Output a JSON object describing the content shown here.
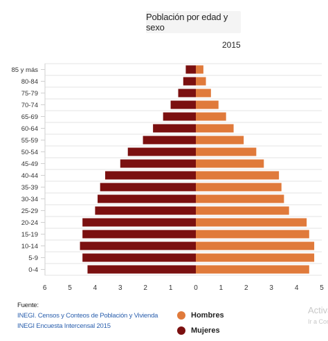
{
  "chart_data": {
    "type": "bar",
    "orientation": "horizontal-population-pyramid",
    "title": "Población por edad y sexo",
    "subtitle": "2015",
    "categories": [
      "85 y más",
      "80-84",
      "75-79",
      "70-74",
      "65-69",
      "60-64",
      "55-59",
      "50-54",
      "45-49",
      "40-44",
      "35-39",
      "30-34",
      "25-29",
      "20-24",
      "15-19",
      "10-14",
      "5-9",
      "0-4"
    ],
    "series": [
      {
        "name": "Hombres",
        "color": "#e07a3b",
        "values": [
          0.3,
          0.4,
          0.6,
          0.9,
          1.2,
          1.5,
          1.9,
          2.4,
          2.7,
          3.3,
          3.4,
          3.5,
          3.7,
          4.4,
          4.5,
          4.7,
          4.7,
          4.5
        ]
      },
      {
        "name": "Mujeres",
        "color": "#7b1010",
        "values": [
          0.4,
          0.5,
          0.7,
          1.0,
          1.3,
          1.7,
          2.1,
          2.7,
          3.0,
          3.6,
          3.8,
          3.9,
          4.0,
          4.5,
          4.5,
          4.6,
          4.5,
          4.3
        ]
      }
    ],
    "x_ticks_left": [
      "6",
      "5",
      "4",
      "3",
      "2",
      "1"
    ],
    "x_ticks_right": [
      "0",
      "1",
      "2",
      "3",
      "4",
      "5"
    ],
    "xlim": [
      -6,
      5
    ],
    "grid": true,
    "legend_position": "bottom-center"
  },
  "source": {
    "label": "Fuente:",
    "lines": [
      "INEGI. Censos y Conteos de Población y Vivienda",
      "INEGI Encuesta Intercensal 2015"
    ]
  },
  "watermark": {
    "line1": "Activa",
    "line2": "Ir a Con"
  }
}
